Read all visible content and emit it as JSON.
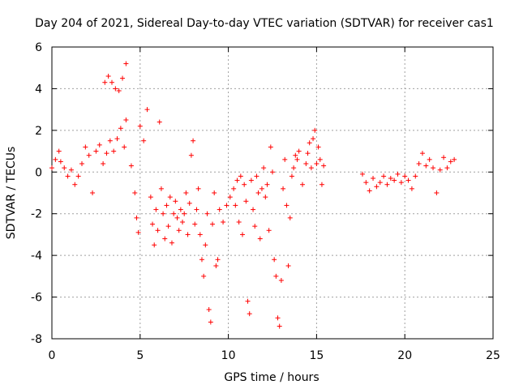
{
  "chart_data": {
    "type": "scatter",
    "title": "Day 204 of 2021, Sidereal Day-to-day VTEC variation (SDTVAR) for receiver cas1",
    "xlabel": "GPS time / hours",
    "ylabel": "SDTVAR / TECUs",
    "xlim": [
      0,
      25
    ],
    "ylim": [
      -8,
      6
    ],
    "xticks": [
      0,
      5,
      10,
      15,
      20,
      25
    ],
    "yticks": [
      -8,
      -6,
      -4,
      -2,
      0,
      2,
      4,
      6
    ],
    "grid": true,
    "marker": "+",
    "color": "#ff0000",
    "series": [
      {
        "name": "SDTVAR",
        "points": [
          [
            0.0,
            0.2
          ],
          [
            0.2,
            0.6
          ],
          [
            0.4,
            1.0
          ],
          [
            0.5,
            0.5
          ],
          [
            0.7,
            0.2
          ],
          [
            0.9,
            -0.2
          ],
          [
            1.1,
            0.1
          ],
          [
            1.3,
            -0.6
          ],
          [
            1.5,
            -0.2
          ],
          [
            1.7,
            0.4
          ],
          [
            1.9,
            1.2
          ],
          [
            2.1,
            0.8
          ],
          [
            2.3,
            -1.0
          ],
          [
            2.5,
            1.0
          ],
          [
            2.7,
            1.3
          ],
          [
            2.9,
            0.4
          ],
          [
            3.1,
            0.9
          ],
          [
            3.3,
            1.5
          ],
          [
            3.5,
            1.0
          ],
          [
            3.7,
            1.6
          ],
          [
            3.9,
            2.1
          ],
          [
            4.1,
            1.2
          ],
          [
            4.2,
            2.5
          ],
          [
            3.0,
            4.3
          ],
          [
            3.2,
            4.6
          ],
          [
            3.4,
            4.3
          ],
          [
            3.6,
            4.0
          ],
          [
            3.8,
            3.9
          ],
          [
            4.0,
            4.5
          ],
          [
            4.2,
            5.2
          ],
          [
            4.5,
            0.3
          ],
          [
            4.7,
            -1.0
          ],
          [
            4.8,
            -2.2
          ],
          [
            4.9,
            -2.9
          ],
          [
            5.0,
            2.2
          ],
          [
            5.2,
            1.5
          ],
          [
            5.4,
            3.0
          ],
          [
            5.6,
            -1.2
          ],
          [
            5.7,
            -2.5
          ],
          [
            5.8,
            -3.5
          ],
          [
            5.9,
            -1.8
          ],
          [
            6.0,
            -2.8
          ],
          [
            6.1,
            2.4
          ],
          [
            6.2,
            -0.8
          ],
          [
            6.3,
            -2.0
          ],
          [
            6.4,
            -3.2
          ],
          [
            6.5,
            -1.6
          ],
          [
            6.6,
            -2.6
          ],
          [
            6.7,
            -1.2
          ],
          [
            6.8,
            -3.4
          ],
          [
            6.9,
            -2.0
          ],
          [
            7.0,
            -1.4
          ],
          [
            7.1,
            -2.2
          ],
          [
            7.2,
            -2.8
          ],
          [
            7.3,
            -1.8
          ],
          [
            7.4,
            -2.4
          ],
          [
            7.5,
            -2.0
          ],
          [
            7.6,
            -1.0
          ],
          [
            7.7,
            -3.0
          ],
          [
            7.8,
            -1.5
          ],
          [
            7.9,
            0.8
          ],
          [
            8.0,
            1.5
          ],
          [
            8.1,
            -2.5
          ],
          [
            8.2,
            -1.8
          ],
          [
            8.3,
            -0.8
          ],
          [
            8.4,
            -3.0
          ],
          [
            8.5,
            -4.2
          ],
          [
            8.6,
            -5.0
          ],
          [
            8.7,
            -3.5
          ],
          [
            8.8,
            -2.0
          ],
          [
            8.9,
            -6.6
          ],
          [
            9.0,
            -7.2
          ],
          [
            9.1,
            -2.5
          ],
          [
            9.2,
            -1.0
          ],
          [
            9.3,
            -4.5
          ],
          [
            9.4,
            -4.2
          ],
          [
            9.5,
            -1.8
          ],
          [
            9.7,
            -2.4
          ],
          [
            9.9,
            -1.6
          ],
          [
            10.1,
            -1.2
          ],
          [
            10.3,
            -0.8
          ],
          [
            10.4,
            -1.6
          ],
          [
            10.5,
            -0.4
          ],
          [
            10.6,
            -2.4
          ],
          [
            10.7,
            -0.2
          ],
          [
            10.8,
            -3.0
          ],
          [
            10.9,
            -0.6
          ],
          [
            11.0,
            -1.4
          ],
          [
            11.1,
            -6.2
          ],
          [
            11.2,
            -6.8
          ],
          [
            11.3,
            -0.4
          ],
          [
            11.4,
            -1.8
          ],
          [
            11.5,
            -2.6
          ],
          [
            11.6,
            -0.2
          ],
          [
            11.7,
            -1.0
          ],
          [
            11.8,
            -3.2
          ],
          [
            11.9,
            -0.8
          ],
          [
            12.0,
            0.2
          ],
          [
            12.1,
            -1.2
          ],
          [
            12.2,
            -0.6
          ],
          [
            12.3,
            -2.8
          ],
          [
            12.4,
            1.2
          ],
          [
            12.5,
            0.0
          ],
          [
            12.6,
            -4.2
          ],
          [
            12.7,
            -5.0
          ],
          [
            12.8,
            -7.0
          ],
          [
            12.9,
            -7.4
          ],
          [
            13.0,
            -5.2
          ],
          [
            13.1,
            -0.8
          ],
          [
            13.2,
            0.6
          ],
          [
            13.3,
            -1.6
          ],
          [
            13.4,
            -4.5
          ],
          [
            13.5,
            -2.2
          ],
          [
            13.6,
            -0.2
          ],
          [
            13.7,
            0.2
          ],
          [
            13.8,
            0.8
          ],
          [
            13.9,
            0.6
          ],
          [
            14.0,
            1.0
          ],
          [
            14.2,
            -0.6
          ],
          [
            14.4,
            0.4
          ],
          [
            14.5,
            0.9
          ],
          [
            14.6,
            1.4
          ],
          [
            14.7,
            0.2
          ],
          [
            14.8,
            1.6
          ],
          [
            14.9,
            2.0
          ],
          [
            15.0,
            0.4
          ],
          [
            15.1,
            1.2
          ],
          [
            15.2,
            0.6
          ],
          [
            15.3,
            -0.6
          ],
          [
            15.4,
            0.3
          ],
          [
            17.6,
            -0.1
          ],
          [
            17.8,
            -0.5
          ],
          [
            18.0,
            -0.9
          ],
          [
            18.2,
            -0.3
          ],
          [
            18.4,
            -0.7
          ],
          [
            18.6,
            -0.5
          ],
          [
            18.8,
            -0.2
          ],
          [
            19.0,
            -0.6
          ],
          [
            19.2,
            -0.3
          ],
          [
            19.4,
            -0.4
          ],
          [
            19.6,
            -0.1
          ],
          [
            19.8,
            -0.5
          ],
          [
            20.0,
            -0.2
          ],
          [
            20.2,
            -0.4
          ],
          [
            20.4,
            -0.8
          ],
          [
            20.6,
            -0.2
          ],
          [
            20.8,
            0.4
          ],
          [
            21.0,
            0.9
          ],
          [
            21.2,
            0.3
          ],
          [
            21.4,
            0.6
          ],
          [
            21.6,
            0.2
          ],
          [
            21.8,
            -1.0
          ],
          [
            22.0,
            0.1
          ],
          [
            22.2,
            0.7
          ],
          [
            22.4,
            0.2
          ],
          [
            22.6,
            0.5
          ],
          [
            22.8,
            0.6
          ]
        ]
      }
    ]
  }
}
